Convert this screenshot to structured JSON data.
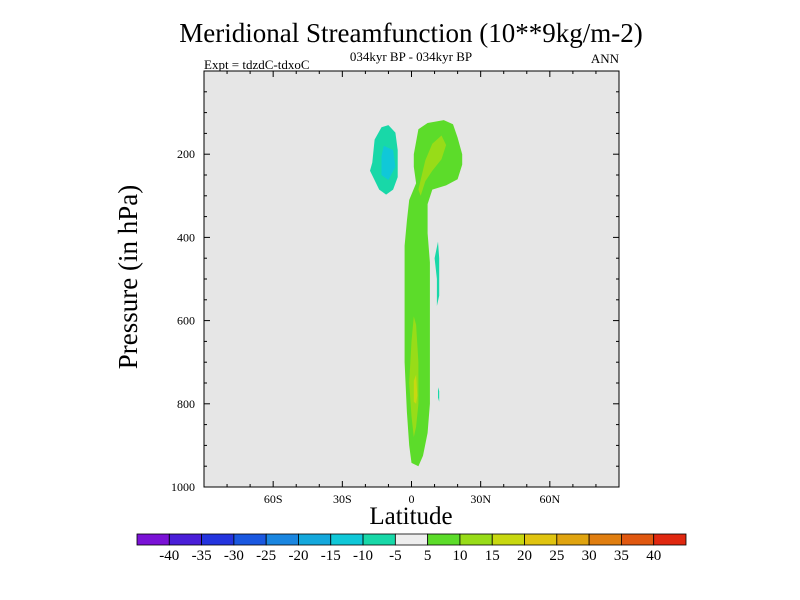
{
  "chart_data": {
    "type": "contour",
    "title": "Meridional Streamfunction (10**9kg/m-2)",
    "subtitle_center": "034kyr BP - 034kyr BP",
    "subtitle_left": "Expt = tdzdC-tdxoC",
    "subtitle_right": "ANN",
    "xlabel": "Latitude",
    "ylabel": "Pressure (in hPa)",
    "xlim": [
      -90,
      90
    ],
    "ylim": [
      0,
      1000
    ],
    "x_ticks": [
      -60,
      -30,
      0,
      30,
      60
    ],
    "x_tick_labels": [
      "60S",
      "30S",
      "0",
      "30N",
      "60N"
    ],
    "y_ticks": [
      200,
      400,
      600,
      800,
      1000
    ],
    "y_tick_labels": [
      "200",
      "400",
      "600",
      "800",
      "1000"
    ],
    "background_color": "#e6e6e6",
    "colorbar": {
      "labels": [
        "-40",
        "-35",
        "-30",
        "-25",
        "-20",
        "-15",
        "-10",
        "-5",
        "5",
        "10",
        "15",
        "20",
        "25",
        "30",
        "35",
        "40"
      ],
      "colors": [
        "#7a12d6",
        "#4a1ed8",
        "#2434de",
        "#1a58e0",
        "#1a86e0",
        "#14a8dc",
        "#10c8d8",
        "#18d8a8",
        "#eeeeee",
        "#5cdc2a",
        "#98dc18",
        "#c8d810",
        "#e0c410",
        "#e0a410",
        "#e07e10",
        "#e05810",
        "#e02810"
      ]
    },
    "regions": [
      {
        "name": "southern-negative-cell",
        "level": "-10 to -5",
        "color": "#18d8a8",
        "points": [
          [
            -17,
            220
          ],
          [
            -16,
            165
          ],
          [
            -13,
            135
          ],
          [
            -10,
            130
          ],
          [
            -7,
            148
          ],
          [
            -6,
            190
          ],
          [
            -6,
            255
          ],
          [
            -8,
            285
          ],
          [
            -11,
            297
          ],
          [
            -14,
            285
          ],
          [
            -18,
            240
          ]
        ]
      },
      {
        "name": "southern-negative-core",
        "level": "-15 to -10",
        "color": "#10c8d8",
        "points": [
          [
            -12,
            180
          ],
          [
            -8,
            190
          ],
          [
            -7,
            230
          ],
          [
            -10,
            262
          ],
          [
            -13,
            250
          ],
          [
            -13,
            205
          ]
        ]
      },
      {
        "name": "tropical-positive-cell",
        "level": "5 to 10",
        "color": "#5cdc2a",
        "points": [
          [
            3,
            140
          ],
          [
            7,
            125
          ],
          [
            14,
            118
          ],
          [
            18,
            128
          ],
          [
            20,
            160
          ],
          [
            22,
            200
          ],
          [
            22,
            225
          ],
          [
            20,
            260
          ],
          [
            15,
            275
          ],
          [
            9,
            285
          ],
          [
            7,
            320
          ],
          [
            7,
            390
          ],
          [
            8,
            460
          ],
          [
            8,
            530
          ],
          [
            8,
            600
          ],
          [
            8,
            700
          ],
          [
            8,
            800
          ],
          [
            7,
            870
          ],
          [
            5,
            925
          ],
          [
            3,
            950
          ],
          [
            0,
            942
          ],
          [
            -1,
            900
          ],
          [
            -2,
            820
          ],
          [
            -3,
            700
          ],
          [
            -3,
            600
          ],
          [
            -3,
            500
          ],
          [
            -3,
            420
          ],
          [
            -2,
            360
          ],
          [
            -1,
            310
          ],
          [
            2,
            270
          ],
          [
            1,
            230
          ],
          [
            1,
            200
          ],
          [
            2,
            170
          ]
        ]
      },
      {
        "name": "upper-positive-core",
        "level": "10 to 15",
        "color": "#98dc18",
        "points": [
          [
            6,
            215
          ],
          [
            9,
            175
          ],
          [
            13,
            155
          ],
          [
            15,
            178
          ],
          [
            13,
            212
          ],
          [
            9,
            240
          ],
          [
            6,
            265
          ],
          [
            4,
            300
          ],
          [
            3,
            285
          ]
        ]
      },
      {
        "name": "lower-positive-core",
        "level": "10 to 15",
        "color": "#98dc18",
        "points": [
          [
            0,
            650
          ],
          [
            1,
            590
          ],
          [
            2,
            610
          ],
          [
            3,
            700
          ],
          [
            3,
            800
          ],
          [
            2,
            855
          ],
          [
            1,
            880
          ],
          [
            0,
            830
          ],
          [
            -1,
            750
          ]
        ]
      },
      {
        "name": "lower-positive-peak",
        "level": "15 to 20",
        "color": "#c8d810",
        "points": [
          [
            1,
            745
          ],
          [
            2,
            730
          ],
          [
            2.5,
            780
          ],
          [
            2,
            800
          ],
          [
            1,
            795
          ]
        ]
      },
      {
        "name": "mid-negative-blob",
        "level": "-10 to -5",
        "color": "#18d8a8",
        "points": [
          [
            11,
            500
          ],
          [
            10,
            450
          ],
          [
            11.5,
            410
          ],
          [
            12,
            450
          ],
          [
            12,
            540
          ],
          [
            11,
            565
          ]
        ]
      },
      {
        "name": "mid-negative-sliver",
        "level": "-10 to -5",
        "color": "#18d8a8",
        "points": [
          [
            11.5,
            760
          ],
          [
            12,
            770
          ],
          [
            12,
            795
          ],
          [
            11.5,
            785
          ]
        ]
      }
    ]
  }
}
